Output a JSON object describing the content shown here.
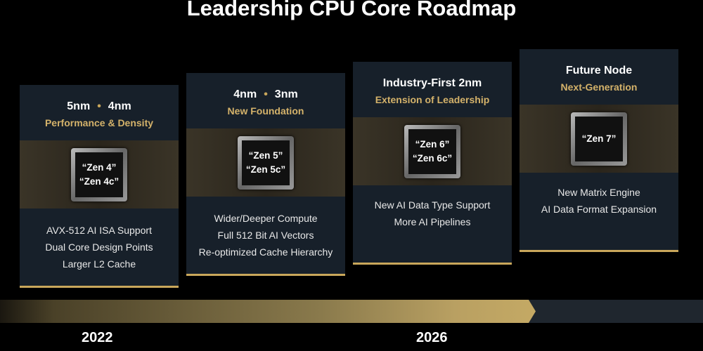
{
  "title": "Leadership CPU Core Roadmap",
  "cards": [
    {
      "node_a": "5nm",
      "node_b": "4nm",
      "subtitle": "Performance & Density",
      "chip": [
        "“Zen 4”",
        "“Zen 4c”"
      ],
      "features": [
        "AVX-512 AI ISA Support",
        "Dual Core Design Points",
        "Larger L2 Cache"
      ]
    },
    {
      "node_a": "4nm",
      "node_b": "3nm",
      "subtitle": "New Foundation",
      "chip": [
        "“Zen 5”",
        "“Zen 5c”"
      ],
      "features": [
        "Wider/Deeper Compute",
        "Full 512 Bit AI Vectors",
        "Re-optimized Cache Hierarchy"
      ]
    },
    {
      "node_a": "Industry-First 2nm",
      "subtitle": "Extension of Leadership",
      "chip": [
        "“Zen 6”",
        "“Zen 6c”"
      ],
      "features": [
        "New AI Data Type Support",
        "More AI Pipelines"
      ]
    },
    {
      "node_a": "Future Node",
      "subtitle": "Next-Generation",
      "chip": [
        "“Zen 7”"
      ],
      "features": [
        "New Matrix Engine",
        "AI Data Format Expansion"
      ]
    }
  ],
  "timeline": {
    "years": [
      "2022",
      "2026"
    ],
    "colors": {
      "gold": "#c9a75b",
      "dark": "#1f262e"
    }
  }
}
